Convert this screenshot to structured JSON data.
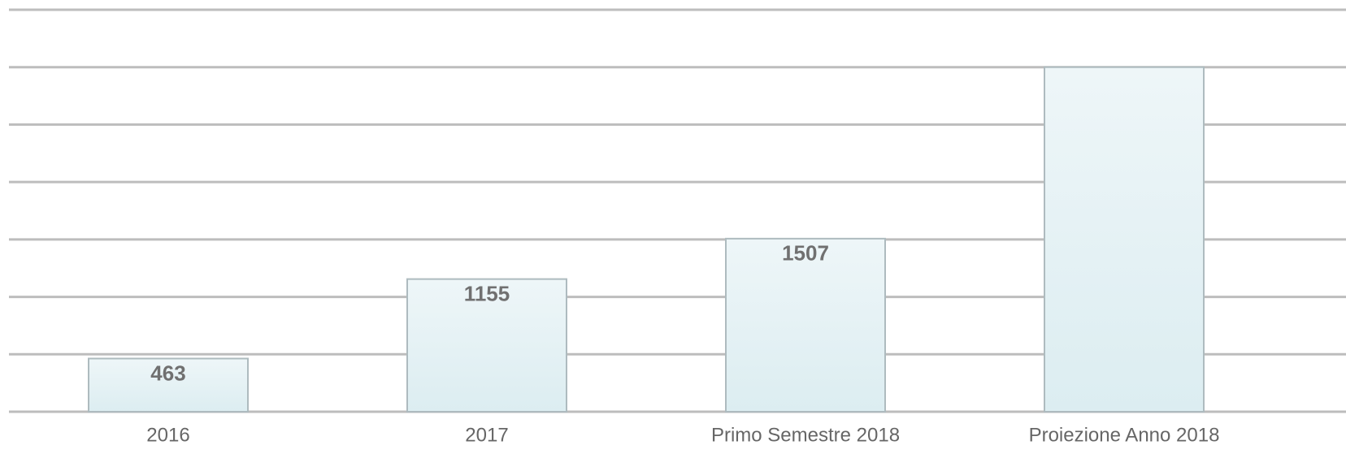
{
  "chart_data": {
    "type": "bar",
    "categories": [
      "2016",
      "2017",
      "Primo Semestre 2018",
      "Proiezione Anno 2018"
    ],
    "values": [
      463,
      1155,
      1507,
      3000
    ],
    "value_labels": [
      "463",
      "1155",
      "1507",
      null
    ],
    "color": "#e4f1f4",
    "ylim": [
      0,
      3500
    ],
    "yticks": [
      0,
      500,
      1000,
      1500,
      2000,
      2500,
      3000,
      3500
    ],
    "grid": true
  }
}
